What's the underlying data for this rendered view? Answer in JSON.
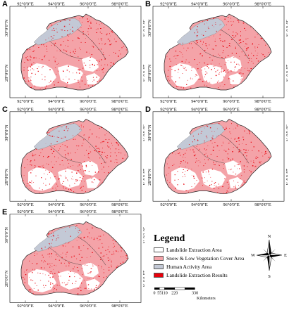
{
  "panels": [
    {
      "label": "A"
    },
    {
      "label": "B"
    },
    {
      "label": "C"
    },
    {
      "label": "D"
    },
    {
      "label": "E"
    }
  ],
  "longitude_ticks": [
    "92°0'0\"E",
    "94°0'0\"E",
    "96°0'0\"E",
    "98°0'0\"E"
  ],
  "latitude_ticks": [
    "30°0'0\"N",
    "28°0'0\"N"
  ],
  "legend": {
    "title": "Legend",
    "items": [
      {
        "label": "Landslide Extraction Area",
        "color": "#ffffff"
      },
      {
        "label": "Snow & Low Vegetation Cover Area",
        "color": "#f4a3a8"
      },
      {
        "label": "Human Activity Area",
        "color": "#c3c9d6"
      },
      {
        "label": "Landslide Extraction Results",
        "color": "#e8000b"
      }
    ]
  },
  "compass": {
    "n": "N",
    "s": "S",
    "e": "E",
    "w": "W"
  },
  "scale": {
    "ticks": [
      "0",
      "55",
      "110",
      "220",
      "330"
    ],
    "unit": "Kilometers"
  }
}
